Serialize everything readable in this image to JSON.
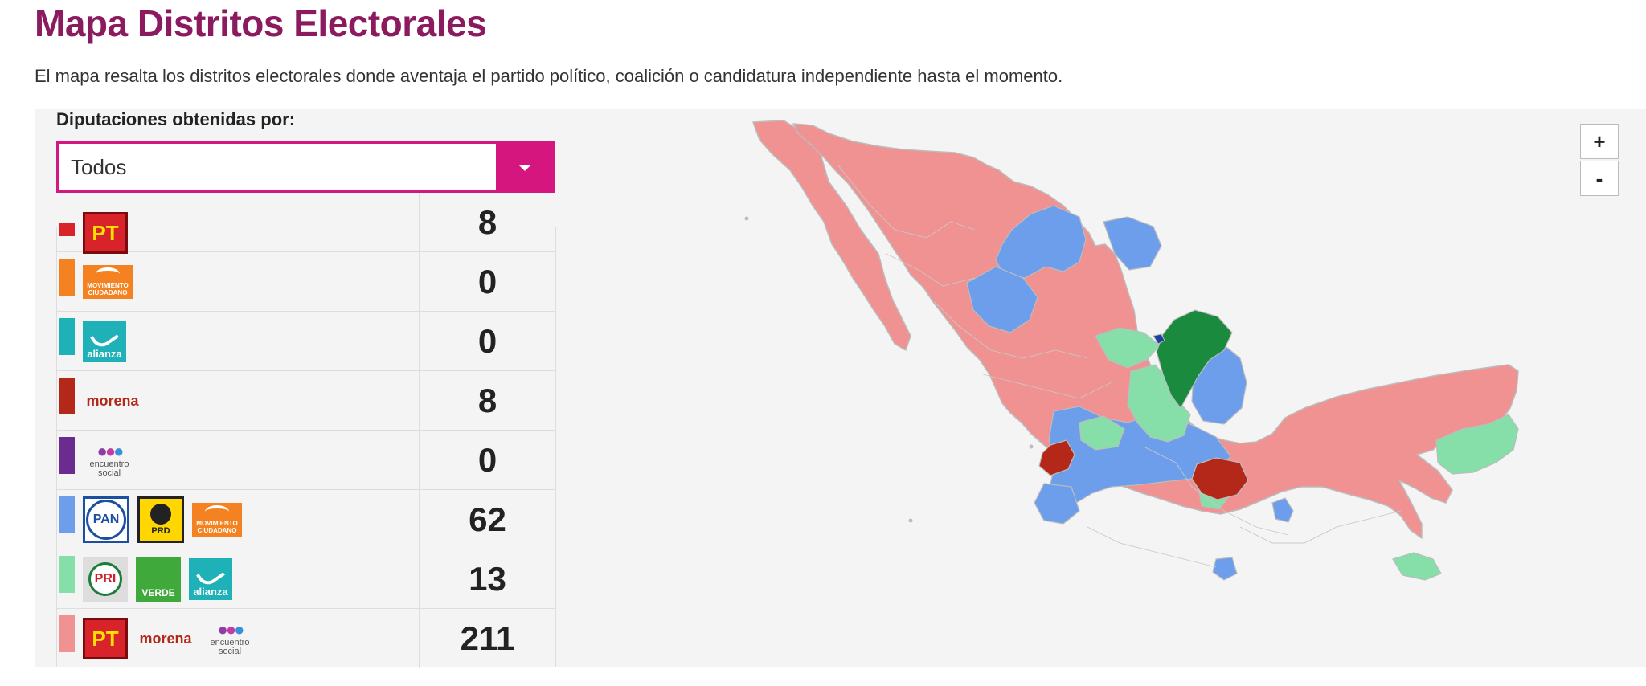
{
  "page": {
    "title": "Mapa Distritos Electorales",
    "description": "El mapa resalta los distritos electorales donde aventaja el partido político, coalición o candidatura independiente hasta el momento."
  },
  "filter": {
    "label": "Diputaciones obtenidas por:",
    "selected": "Todos"
  },
  "legend_rows": [
    {
      "color": "#d8232a",
      "logos": [
        "PT"
      ],
      "count": "8"
    },
    {
      "color": "#f58220",
      "logos": [
        "MOVIMIENTO CIUDADANO"
      ],
      "count": "0"
    },
    {
      "color": "#1fb1b8",
      "logos": [
        "alianza"
      ],
      "count": "0"
    },
    {
      "color": "#b32819",
      "logos": [
        "morena"
      ],
      "count": "8"
    },
    {
      "color": "#6b2c8f",
      "logos": [
        "encuentro social"
      ],
      "count": "0"
    },
    {
      "color": "#6d9eeb",
      "logos": [
        "PAN",
        "PRD",
        "MOVIMIENTO CIUDADANO"
      ],
      "count": "62"
    },
    {
      "color": "#86dfa8",
      "logos": [
        "PRI",
        "VERDE",
        "alianza"
      ],
      "count": "13"
    },
    {
      "color": "#f09292",
      "logos": [
        "PT",
        "morena",
        "encuentro social"
      ],
      "count": "211"
    }
  ],
  "logo_text": {
    "pt": "PT",
    "mc": "MOVIMIENTO CIUDADANO",
    "alianza": "alianza",
    "morena": "morena",
    "es": "encuentro social",
    "pan": "PAN",
    "prd": "PRD",
    "pri": "PRI",
    "verde": "VERDE"
  },
  "map": {
    "colors": {
      "coalition_pt_morena_es": "#f09292",
      "coalition_pan_prd_mc": "#6d9eeb",
      "coalition_pri_verde_alianza": "#86dfa8",
      "morena": "#b32819",
      "pri": "#1a8a3e",
      "border": "#bcbcbc"
    },
    "zoom_in_label": "+",
    "zoom_out_label": "-"
  }
}
